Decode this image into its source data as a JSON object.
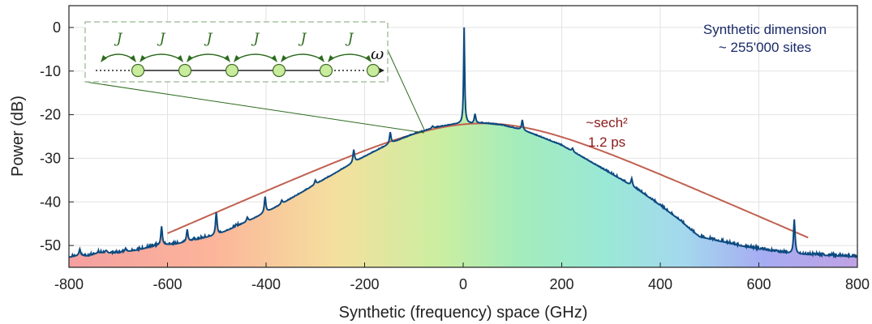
{
  "chart_data": {
    "type": "line",
    "xlabel": "Synthetic (frequency) space (GHz)",
    "ylabel": "Power (dB)",
    "xlim": [
      -800,
      800
    ],
    "ylim": [
      -55,
      5
    ],
    "xticks": [
      -800,
      -600,
      -400,
      -200,
      0,
      200,
      400,
      600,
      800
    ],
    "yticks": [
      0,
      -10,
      -20,
      -30,
      -40,
      -50
    ],
    "grid": true,
    "background": "rainbow-gradient-fill-under-curve",
    "series": [
      {
        "role": "measured-spectrum",
        "color": "#0c4a80",
        "points": [
          [
            -800,
            -52.7
          ],
          [
            -780,
            -52.3
          ],
          [
            -760,
            -52.4
          ],
          [
            -740,
            -51.6
          ],
          [
            -700,
            -51.7
          ],
          [
            -660,
            -51.0
          ],
          [
            -620,
            -50.0
          ],
          [
            -580,
            -49.6
          ],
          [
            -540,
            -48.6
          ],
          [
            -500,
            -47.6
          ],
          [
            -460,
            -45.6
          ],
          [
            -420,
            -43.5
          ],
          [
            -380,
            -41.2
          ],
          [
            -340,
            -38.6
          ],
          [
            -300,
            -36.0
          ],
          [
            -260,
            -33.4
          ],
          [
            -220,
            -30.8
          ],
          [
            -180,
            -28.4
          ],
          [
            -140,
            -26.2
          ],
          [
            -100,
            -24.4
          ],
          [
            -60,
            -23.0
          ],
          [
            -20,
            -22.2
          ],
          [
            0,
            -22.0
          ],
          [
            40,
            -21.9
          ],
          [
            80,
            -22.4
          ],
          [
            120,
            -23.5
          ],
          [
            160,
            -25.2
          ],
          [
            200,
            -27.0
          ],
          [
            240,
            -29.6
          ],
          [
            280,
            -32.2
          ],
          [
            320,
            -34.8
          ],
          [
            360,
            -37.6
          ],
          [
            400,
            -40.8
          ],
          [
            440,
            -44.2
          ],
          [
            460,
            -46.2
          ],
          [
            480,
            -48.0
          ],
          [
            520,
            -49.0
          ],
          [
            560,
            -50.0
          ],
          [
            600,
            -50.8
          ],
          [
            640,
            -51.5
          ],
          [
            680,
            -52.0
          ],
          [
            720,
            -52.2
          ],
          [
            760,
            -52.4
          ],
          [
            800,
            -52.6
          ]
        ],
        "peaks": [
          [
            -778,
            -50.8
          ],
          [
            -685,
            -50.6
          ],
          [
            -612,
            -45.6
          ],
          [
            -560,
            -46.3
          ],
          [
            -501,
            -42.4
          ],
          [
            -438,
            -43.5
          ],
          [
            -402,
            -38.8
          ],
          [
            -368,
            -39.6
          ],
          [
            -300,
            -35.0
          ],
          [
            -222,
            -28.0
          ],
          [
            -148,
            -24.0
          ],
          [
            -62,
            -22.6
          ],
          [
            2,
            0.0
          ],
          [
            24,
            -19.8
          ],
          [
            120,
            -21.2
          ],
          [
            222,
            -27.7
          ],
          [
            342,
            -34.6
          ],
          [
            636,
            -51.0
          ],
          [
            672,
            -44.0
          ]
        ]
      },
      {
        "role": "sech-squared-fit",
        "name": "~sech²",
        "color": "#c06050",
        "center": 40,
        "peak": -22.0,
        "width_ghz": 178
      }
    ],
    "annotations": [
      {
        "text": "~sech²",
        "color": "#8a1a1a"
      },
      {
        "text": "1.2 ps",
        "color": "#8a1a1a"
      },
      {
        "text": "Synthetic dimension",
        "color": "#1a2a6a"
      },
      {
        "text": "~ 255'000 sites",
        "color": "#1a2a6a"
      }
    ],
    "inset": {
      "coupling_label": "J",
      "axis_symbol": "ω",
      "site_count": 6,
      "site_color": "#c8ec9c",
      "arrow_color": "#2e6b1e",
      "box_border_color": "#a8c4a4"
    }
  }
}
